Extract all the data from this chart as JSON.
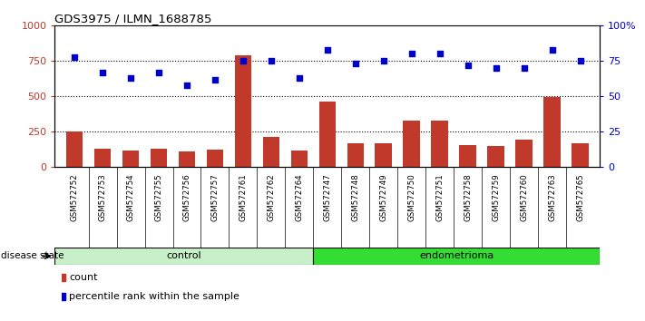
{
  "title": "GDS3975 / ILMN_1688785",
  "samples": [
    "GSM572752",
    "GSM572753",
    "GSM572754",
    "GSM572755",
    "GSM572756",
    "GSM572757",
    "GSM572761",
    "GSM572762",
    "GSM572764",
    "GSM572747",
    "GSM572748",
    "GSM572749",
    "GSM572750",
    "GSM572751",
    "GSM572758",
    "GSM572759",
    "GSM572760",
    "GSM572763",
    "GSM572765"
  ],
  "counts": [
    250,
    130,
    115,
    130,
    110,
    125,
    790,
    215,
    115,
    465,
    165,
    170,
    325,
    330,
    155,
    145,
    195,
    495,
    165
  ],
  "percentiles": [
    78,
    67,
    63,
    67,
    58,
    62,
    75,
    75,
    63,
    83,
    73,
    75,
    80,
    80,
    72,
    70,
    70,
    83,
    75
  ],
  "control_count": 9,
  "endometrioma_count": 10,
  "bar_color": "#c0392b",
  "dot_color": "#0000cc",
  "ylim_left": [
    0,
    1000
  ],
  "ylim_right": [
    0,
    100
  ],
  "yticks_left": [
    0,
    250,
    500,
    750,
    1000
  ],
  "yticks_right": [
    0,
    25,
    50,
    75,
    100
  ],
  "ytick_labels_right": [
    "0",
    "25",
    "50",
    "75",
    "100%"
  ],
  "grid_values": [
    250,
    500,
    750
  ],
  "control_label": "control",
  "endometrioma_label": "endometrioma",
  "disease_state_label": "disease state",
  "legend_count": "count",
  "legend_percentile": "percentile rank within the sample",
  "control_color": "#c8f0c8",
  "endometrioma_color": "#33dd33",
  "xtick_bg_color": "#d0d0d0",
  "plot_area_color": "#ffffff"
}
